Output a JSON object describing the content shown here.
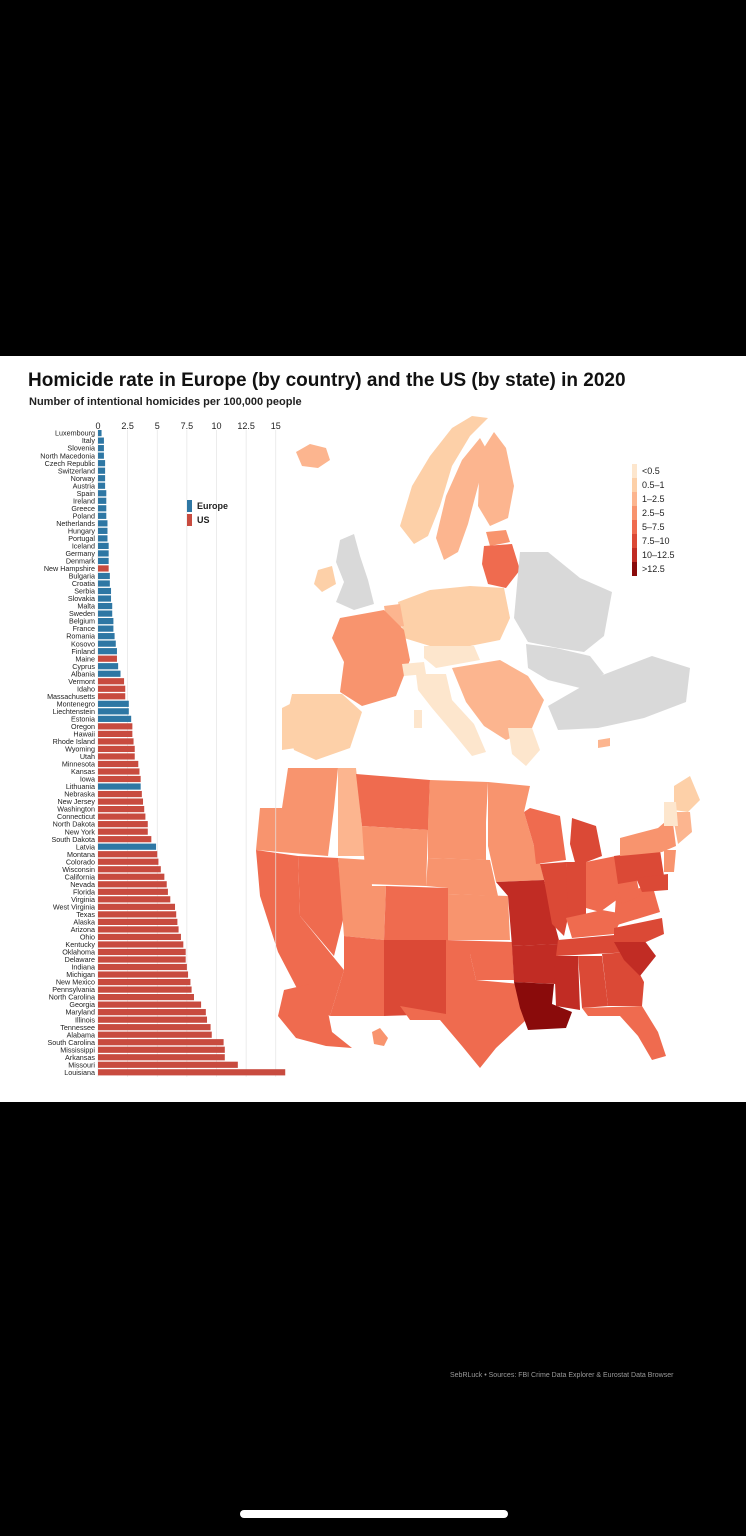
{
  "title": "Homicide rate in Europe (by country) and the US (by state) in 2020",
  "subtitle": "Number of intentional homicides per 100,000 people",
  "source": "SebRLuck • Sources: FBI Crime Data Explorer & Eurostat Data Browser",
  "colors": {
    "europe": "#2e77a4",
    "us": "#c84b3f",
    "no_data": "#d9d9d9"
  },
  "chart_data": [
    {
      "type": "bar",
      "orientation": "horizontal",
      "title": "Homicide rate in Europe (by country) and the US (by state) in 2020",
      "subtitle": "Number of intentional homicides per 100,000 people",
      "xlim": [
        0,
        16
      ],
      "xticks": [
        "0",
        "2.5",
        "5",
        "7.5",
        "10",
        "12.5",
        "15"
      ],
      "xtick_values": [
        0,
        2.5,
        5,
        7.5,
        10,
        12.5,
        15
      ],
      "legend": {
        "placement": "top-right",
        "entries": [
          {
            "name": "Europe",
            "color": "#2e77a4"
          },
          {
            "name": "US",
            "color": "#c84b3f"
          }
        ]
      },
      "bars": [
        {
          "label": "Luxembourg",
          "value": 0.3,
          "group": "Europe"
        },
        {
          "label": "Italy",
          "value": 0.5,
          "group": "Europe"
        },
        {
          "label": "Slovenia",
          "value": 0.5,
          "group": "Europe"
        },
        {
          "label": "North Macedonia",
          "value": 0.5,
          "group": "Europe"
        },
        {
          "label": "Czech Republic",
          "value": 0.6,
          "group": "Europe"
        },
        {
          "label": "Switzerland",
          "value": 0.6,
          "group": "Europe"
        },
        {
          "label": "Norway",
          "value": 0.6,
          "group": "Europe"
        },
        {
          "label": "Austria",
          "value": 0.6,
          "group": "Europe"
        },
        {
          "label": "Spain",
          "value": 0.7,
          "group": "Europe"
        },
        {
          "label": "Ireland",
          "value": 0.7,
          "group": "Europe"
        },
        {
          "label": "Greece",
          "value": 0.7,
          "group": "Europe"
        },
        {
          "label": "Poland",
          "value": 0.7,
          "group": "Europe"
        },
        {
          "label": "Netherlands",
          "value": 0.8,
          "group": "Europe"
        },
        {
          "label": "Hungary",
          "value": 0.8,
          "group": "Europe"
        },
        {
          "label": "Portugal",
          "value": 0.8,
          "group": "Europe"
        },
        {
          "label": "Iceland",
          "value": 0.9,
          "group": "Europe"
        },
        {
          "label": "Germany",
          "value": 0.9,
          "group": "Europe"
        },
        {
          "label": "Denmark",
          "value": 0.9,
          "group": "Europe"
        },
        {
          "label": "New Hampshire",
          "value": 0.9,
          "group": "US"
        },
        {
          "label": "Bulgaria",
          "value": 1.0,
          "group": "Europe"
        },
        {
          "label": "Croatia",
          "value": 1.0,
          "group": "Europe"
        },
        {
          "label": "Serbia",
          "value": 1.1,
          "group": "Europe"
        },
        {
          "label": "Slovakia",
          "value": 1.1,
          "group": "Europe"
        },
        {
          "label": "Malta",
          "value": 1.2,
          "group": "Europe"
        },
        {
          "label": "Sweden",
          "value": 1.2,
          "group": "Europe"
        },
        {
          "label": "Belgium",
          "value": 1.3,
          "group": "Europe"
        },
        {
          "label": "France",
          "value": 1.3,
          "group": "Europe"
        },
        {
          "label": "Romania",
          "value": 1.4,
          "group": "Europe"
        },
        {
          "label": "Kosovo",
          "value": 1.5,
          "group": "Europe"
        },
        {
          "label": "Finland",
          "value": 1.6,
          "group": "Europe"
        },
        {
          "label": "Maine",
          "value": 1.6,
          "group": "US"
        },
        {
          "label": "Cyprus",
          "value": 1.7,
          "group": "Europe"
        },
        {
          "label": "Albania",
          "value": 1.9,
          "group": "Europe"
        },
        {
          "label": "Vermont",
          "value": 2.2,
          "group": "US"
        },
        {
          "label": "Idaho",
          "value": 2.3,
          "group": "US"
        },
        {
          "label": "Massachusetts",
          "value": 2.3,
          "group": "US"
        },
        {
          "label": "Montenegro",
          "value": 2.6,
          "group": "Europe"
        },
        {
          "label": "Liechtenstein",
          "value": 2.6,
          "group": "Europe"
        },
        {
          "label": "Estonia",
          "value": 2.8,
          "group": "Europe"
        },
        {
          "label": "Oregon",
          "value": 2.9,
          "group": "US"
        },
        {
          "label": "Hawaii",
          "value": 2.9,
          "group": "US"
        },
        {
          "label": "Rhode Island",
          "value": 3.0,
          "group": "US"
        },
        {
          "label": "Wyoming",
          "value": 3.1,
          "group": "US"
        },
        {
          "label": "Utah",
          "value": 3.1,
          "group": "US"
        },
        {
          "label": "Minnesota",
          "value": 3.4,
          "group": "US"
        },
        {
          "label": "Kansas",
          "value": 3.5,
          "group": "US"
        },
        {
          "label": "Iowa",
          "value": 3.6,
          "group": "US"
        },
        {
          "label": "Lithuania",
          "value": 3.6,
          "group": "Europe"
        },
        {
          "label": "Nebraska",
          "value": 3.7,
          "group": "US"
        },
        {
          "label": "New Jersey",
          "value": 3.8,
          "group": "US"
        },
        {
          "label": "Washington",
          "value": 3.9,
          "group": "US"
        },
        {
          "label": "Connecticut",
          "value": 4.0,
          "group": "US"
        },
        {
          "label": "North Dakota",
          "value": 4.2,
          "group": "US"
        },
        {
          "label": "New York",
          "value": 4.2,
          "group": "US"
        },
        {
          "label": "South Dakota",
          "value": 4.5,
          "group": "US"
        },
        {
          "label": "Latvia",
          "value": 4.9,
          "group": "Europe"
        },
        {
          "label": "Montana",
          "value": 5.0,
          "group": "US"
        },
        {
          "label": "Colorado",
          "value": 5.1,
          "group": "US"
        },
        {
          "label": "Wisconsin",
          "value": 5.3,
          "group": "US"
        },
        {
          "label": "California",
          "value": 5.6,
          "group": "US"
        },
        {
          "label": "Nevada",
          "value": 5.8,
          "group": "US"
        },
        {
          "label": "Florida",
          "value": 5.9,
          "group": "US"
        },
        {
          "label": "Virginia",
          "value": 6.1,
          "group": "US"
        },
        {
          "label": "West Virginia",
          "value": 6.5,
          "group": "US"
        },
        {
          "label": "Texas",
          "value": 6.6,
          "group": "US"
        },
        {
          "label": "Alaska",
          "value": 6.7,
          "group": "US"
        },
        {
          "label": "Arizona",
          "value": 6.8,
          "group": "US"
        },
        {
          "label": "Ohio",
          "value": 7.0,
          "group": "US"
        },
        {
          "label": "Kentucky",
          "value": 7.2,
          "group": "US"
        },
        {
          "label": "Oklahoma",
          "value": 7.4,
          "group": "US"
        },
        {
          "label": "Delaware",
          "value": 7.4,
          "group": "US"
        },
        {
          "label": "Indiana",
          "value": 7.5,
          "group": "US"
        },
        {
          "label": "Michigan",
          "value": 7.6,
          "group": "US"
        },
        {
          "label": "New Mexico",
          "value": 7.8,
          "group": "US"
        },
        {
          "label": "Pennsylvania",
          "value": 7.9,
          "group": "US"
        },
        {
          "label": "North Carolina",
          "value": 8.1,
          "group": "US"
        },
        {
          "label": "Georgia",
          "value": 8.7,
          "group": "US"
        },
        {
          "label": "Maryland",
          "value": 9.1,
          "group": "US"
        },
        {
          "label": "Illinois",
          "value": 9.2,
          "group": "US"
        },
        {
          "label": "Tennessee",
          "value": 9.5,
          "group": "US"
        },
        {
          "label": "Alabama",
          "value": 9.6,
          "group": "US"
        },
        {
          "label": "South Carolina",
          "value": 10.6,
          "group": "US"
        },
        {
          "label": "Mississippi",
          "value": 10.7,
          "group": "US"
        },
        {
          "label": "Arkansas",
          "value": 10.7,
          "group": "US"
        },
        {
          "label": "Missouri",
          "value": 11.8,
          "group": "US"
        },
        {
          "label": "Louisiana",
          "value": 15.8,
          "group": "US"
        }
      ]
    },
    {
      "type": "heatmap",
      "kind": "choropleth",
      "regions": "Europe and United States",
      "legend_placement": "right",
      "bins": [
        {
          "label": "<0.5",
          "color": "#fde6cd"
        },
        {
          "label": "0.5–1",
          "color": "#fdd0a8"
        },
        {
          "label": "1–2.5",
          "color": "#fcb58f"
        },
        {
          "label": "2.5–5",
          "color": "#f8946e"
        },
        {
          "label": "5–7.5",
          "color": "#ef6b4f"
        },
        {
          "label": "7.5–10",
          "color": "#db4936"
        },
        {
          "label": "10–12.5",
          "color": "#c12c24"
        },
        {
          "label": ">12.5",
          "color": "#8a0b0b"
        }
      ]
    }
  ]
}
